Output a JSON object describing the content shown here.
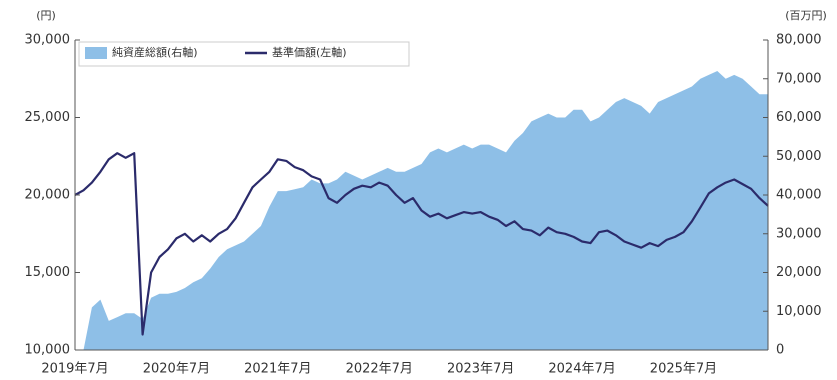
{
  "chart_data": {
    "type": "area-line",
    "y_label": "(円)",
    "y2_label": "(百万円)",
    "categories": [
      "2019年7月",
      null,
      null,
      null,
      null,
      null,
      null,
      null,
      null,
      null,
      null,
      null,
      "2020年7月",
      null,
      null,
      null,
      null,
      null,
      null,
      null,
      null,
      null,
      null,
      null,
      "2021年7月",
      null,
      null,
      null,
      null,
      null,
      null,
      null,
      null,
      null,
      null,
      null,
      "2022年7月",
      null,
      null,
      null,
      null,
      null,
      null,
      null,
      null,
      null,
      null,
      null,
      "2023年7月",
      null,
      null,
      null,
      null,
      null,
      null,
      null,
      null,
      null,
      null,
      null,
      "2024年7月",
      null,
      null,
      null,
      null,
      null,
      null,
      null,
      null,
      null,
      null,
      null,
      "2025年7月",
      null,
      null,
      null,
      null,
      null,
      null,
      null,
      null,
      null,
      null
    ],
    "series": [
      {
        "name": "純資産総額(右軸)",
        "color": "#8ebfe7",
        "axis": "y2",
        "kind": "area",
        "values": [
          0,
          0,
          11000,
          13000,
          7500,
          8500,
          9500,
          9500,
          8000,
          13500,
          14500,
          14500,
          15000,
          16000,
          17500,
          18500,
          21000,
          24000,
          26000,
          27000,
          28000,
          30000,
          32000,
          37000,
          41000,
          41000,
          41500,
          42000,
          44000,
          43000,
          43000,
          44000,
          46000,
          45000,
          44000,
          45000,
          46000,
          47000,
          46000,
          46000,
          47000,
          48000,
          51000,
          52000,
          51000,
          52000,
          53000,
          52000,
          53000,
          53000,
          52000,
          51000,
          54000,
          56000,
          59000,
          60000,
          61000,
          60000,
          60000,
          62000,
          62000,
          59000,
          60000,
          62000,
          64000,
          65000,
          64000,
          63000,
          61000,
          64000,
          65000,
          66000,
          67000,
          68000,
          70000,
          71000,
          72000,
          70000,
          71000,
          70000,
          68000,
          66000,
          66000
        ]
      },
      {
        "name": "基準価額(左軸)",
        "color": "#2b2b6b",
        "axis": "y",
        "kind": "line",
        "values": [
          20000,
          20300,
          20800,
          21500,
          22300,
          22700,
          22400,
          22700,
          11000,
          15000,
          16000,
          16500,
          17200,
          17500,
          17000,
          17400,
          17000,
          17500,
          17800,
          18500,
          19500,
          20500,
          21000,
          21500,
          22300,
          22200,
          21800,
          21600,
          21200,
          21000,
          19800,
          19500,
          20000,
          20400,
          20600,
          20500,
          20800,
          20600,
          20000,
          19500,
          19800,
          19000,
          18600,
          18800,
          18500,
          18700,
          18900,
          18800,
          18900,
          18600,
          18400,
          18000,
          18300,
          17800,
          17700,
          17400,
          17900,
          17600,
          17500,
          17300,
          17000,
          16900,
          17600,
          17700,
          17400,
          17000,
          16800,
          16600,
          16900,
          16700,
          17100,
          17300,
          17600,
          18300,
          19200,
          20100,
          20500,
          20800,
          21000,
          20700,
          20400,
          19800,
          19300
        ]
      }
    ],
    "ylim": [
      10000,
      30000
    ],
    "yticks": [
      {
        "value": 10000,
        "label": "10,000"
      },
      {
        "value": 15000,
        "label": "15,000"
      },
      {
        "value": 20000,
        "label": "20,000"
      },
      {
        "value": 25000,
        "label": "25,000"
      },
      {
        "value": 30000,
        "label": "30,000"
      }
    ],
    "y2lim": [
      0,
      80000
    ],
    "y2ticks": [
      0,
      {
        "value": 10000,
        "label": "10,000"
      },
      {
        "value": 20000,
        "label": "20,000"
      },
      {
        "value": 30000,
        "label": "30,000"
      },
      {
        "value": 40000,
        "label": "40,000"
      },
      {
        "value": 50000,
        "label": "50,000"
      },
      {
        "value": 60000,
        "label": "60,000"
      },
      {
        "value": 70000,
        "label": "70,000"
      },
      {
        "value": 80000,
        "label": "80,000"
      }
    ],
    "legend": "top-left",
    "grid": false
  }
}
